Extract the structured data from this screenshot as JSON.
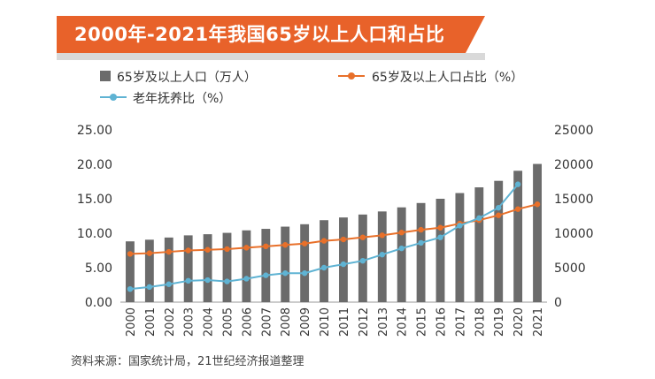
{
  "title": "2000年-2021年我国65岁以上人口和占比",
  "legend": {
    "bar": "65岁及以上人口（万人）",
    "pct": "65岁及以上人口占比（%）",
    "dep": "老年抚养比（%）"
  },
  "source": "资料来源：国家统计局，21世纪经济报道整理",
  "colors": {
    "bar": "#6b6b6b",
    "pct": "#e8702a",
    "dep": "#5fb3d3",
    "banner": "#e8622a"
  },
  "chart_data": {
    "type": "bar+line",
    "categories": [
      "2000",
      "2001",
      "2002",
      "2003",
      "2004",
      "2005",
      "2006",
      "2007",
      "2008",
      "2009",
      "2010",
      "2011",
      "2012",
      "2013",
      "2014",
      "2015",
      "2016",
      "2017",
      "2018",
      "2019",
      "2020",
      "2021"
    ],
    "left_axis": {
      "min": 0,
      "max": 25,
      "ticks": [
        "0.00",
        "5.00",
        "10.00",
        "15.00",
        "20.00",
        "25.00"
      ]
    },
    "right_axis": {
      "min": 0,
      "max": 25000,
      "ticks": [
        "0",
        "5000",
        "10000",
        "15000",
        "20000",
        "25000"
      ]
    },
    "series": [
      {
        "name": "65岁及以上人口（万人）",
        "type": "bar",
        "axis": "right",
        "values": [
          8821,
          9062,
          9377,
          9692,
          9857,
          10055,
          10419,
          10636,
          10956,
          11307,
          11894,
          12288,
          12714,
          13161,
          13755,
          14386,
          15003,
          15831,
          16658,
          17603,
          19064,
          20056
        ]
      },
      {
        "name": "65岁及以上人口占比（%）",
        "type": "line",
        "axis": "left",
        "values": [
          7.0,
          7.1,
          7.3,
          7.5,
          7.6,
          7.7,
          7.9,
          8.1,
          8.3,
          8.5,
          8.9,
          9.1,
          9.4,
          9.7,
          10.1,
          10.5,
          10.8,
          11.4,
          11.9,
          12.6,
          13.5,
          14.2
        ]
      },
      {
        "name": "老年抚养比（%）",
        "type": "line",
        "axis": "left",
        "values": [
          1.9,
          2.2,
          2.6,
          3.1,
          3.2,
          3.0,
          3.4,
          3.9,
          4.2,
          4.2,
          5.0,
          5.5,
          6.0,
          6.9,
          7.8,
          8.6,
          9.4,
          11.1,
          12.2,
          13.7,
          17.1,
          null
        ]
      }
    ]
  }
}
